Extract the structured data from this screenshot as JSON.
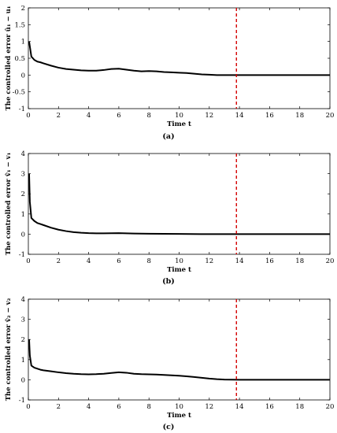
{
  "chart_data": [
    {
      "type": "line",
      "caption": "(a)",
      "xlabel": "Time t",
      "ylabel": "The controlled error û₁ − u₁",
      "xlim": [
        0,
        20
      ],
      "ylim": [
        -1,
        2
      ],
      "xticks": [
        0,
        2,
        4,
        6,
        8,
        10,
        12,
        14,
        16,
        18,
        20
      ],
      "yticks": [
        -1,
        -0.5,
        0,
        0.5,
        1,
        1.5,
        2
      ],
      "xtick_labels": [
        "0",
        "2",
        "4",
        "6",
        "8",
        "10",
        "12",
        "14",
        "16",
        "18",
        "20"
      ],
      "ytick_labels": [
        "-1",
        "-0.5",
        "0",
        "0.5",
        "1",
        "1.5",
        "2"
      ],
      "grid": false,
      "series": [
        {
          "color": "#000000",
          "x": [
            0.05,
            0.1,
            0.2,
            0.4,
            0.6,
            0.8,
            1.0,
            1.5,
            2.0,
            2.5,
            3.0,
            3.5,
            4.0,
            4.5,
            5.0,
            5.5,
            6.0,
            6.5,
            7.0,
            7.5,
            8.0,
            8.5,
            9.0,
            9.5,
            10.0,
            10.5,
            11.0,
            11.5,
            12.0,
            12.5,
            13.0,
            14.0,
            16.0,
            18.0,
            20.0
          ],
          "y": [
            1.0,
            0.85,
            0.55,
            0.45,
            0.4,
            0.38,
            0.35,
            0.28,
            0.22,
            0.18,
            0.16,
            0.14,
            0.13,
            0.13,
            0.15,
            0.18,
            0.19,
            0.16,
            0.13,
            0.11,
            0.12,
            0.11,
            0.09,
            0.08,
            0.07,
            0.06,
            0.04,
            0.02,
            0.01,
            0.0,
            0.0,
            0.0,
            0.0,
            0.0,
            0.0
          ]
        }
      ],
      "vline": {
        "x": 13.8,
        "color": "#d40000",
        "style": "dashed"
      }
    },
    {
      "type": "line",
      "caption": "(b)",
      "xlabel": "Time t",
      "ylabel": "The controlled error v̂₁ − v₁",
      "xlim": [
        0,
        20
      ],
      "ylim": [
        -1,
        4
      ],
      "xticks": [
        0,
        2,
        4,
        6,
        8,
        10,
        12,
        14,
        16,
        18,
        20
      ],
      "yticks": [
        -1,
        0,
        1,
        2,
        3,
        4
      ],
      "xtick_labels": [
        "0",
        "2",
        "4",
        "6",
        "8",
        "10",
        "12",
        "14",
        "16",
        "18",
        "20"
      ],
      "ytick_labels": [
        "-1",
        "0",
        "1",
        "2",
        "3",
        "4"
      ],
      "grid": false,
      "series": [
        {
          "color": "#000000",
          "x": [
            0.05,
            0.1,
            0.2,
            0.4,
            0.6,
            0.8,
            1.0,
            1.5,
            2.0,
            2.5,
            3.0,
            3.5,
            4.0,
            4.5,
            5.0,
            6.0,
            7.0,
            8.0,
            10.0,
            12.0,
            14.0,
            16.0,
            18.0,
            20.0
          ],
          "y": [
            3.0,
            1.6,
            0.8,
            0.65,
            0.55,
            0.5,
            0.45,
            0.32,
            0.22,
            0.15,
            0.1,
            0.07,
            0.05,
            0.04,
            0.04,
            0.05,
            0.03,
            0.02,
            0.01,
            0.0,
            0.0,
            0.0,
            0.0,
            0.0
          ]
        }
      ],
      "vline": {
        "x": 13.8,
        "color": "#d40000",
        "style": "dashed"
      }
    },
    {
      "type": "line",
      "caption": "(c)",
      "xlabel": "Time t",
      "ylabel": "The controlled error v̂₂ − v₂",
      "xlim": [
        0,
        20
      ],
      "ylim": [
        -1,
        4
      ],
      "xticks": [
        0,
        2,
        4,
        6,
        8,
        10,
        12,
        14,
        16,
        18,
        20
      ],
      "yticks": [
        -1,
        0,
        1,
        2,
        3,
        4
      ],
      "xtick_labels": [
        "0",
        "2",
        "4",
        "6",
        "8",
        "10",
        "12",
        "14",
        "16",
        "18",
        "20"
      ],
      "ytick_labels": [
        "-1",
        "0",
        "1",
        "2",
        "3",
        "4"
      ],
      "grid": false,
      "series": [
        {
          "color": "#000000",
          "x": [
            0.05,
            0.1,
            0.2,
            0.4,
            0.6,
            0.8,
            1.0,
            1.5,
            2.0,
            2.5,
            3.0,
            3.5,
            4.0,
            4.5,
            5.0,
            5.5,
            6.0,
            6.5,
            7.0,
            7.5,
            8.0,
            8.5,
            9.0,
            9.5,
            10.0,
            10.5,
            11.0,
            11.5,
            12.0,
            12.5,
            13.0,
            14.0,
            16.0,
            18.0,
            20.0
          ],
          "y": [
            2.0,
            1.2,
            0.7,
            0.6,
            0.55,
            0.5,
            0.47,
            0.42,
            0.37,
            0.33,
            0.3,
            0.28,
            0.27,
            0.28,
            0.3,
            0.34,
            0.37,
            0.35,
            0.3,
            0.28,
            0.27,
            0.26,
            0.24,
            0.22,
            0.2,
            0.17,
            0.14,
            0.1,
            0.06,
            0.03,
            0.01,
            0.0,
            0.0,
            0.0,
            0.0
          ]
        }
      ],
      "vline": {
        "x": 13.8,
        "color": "#d40000",
        "style": "dashed"
      }
    }
  ]
}
